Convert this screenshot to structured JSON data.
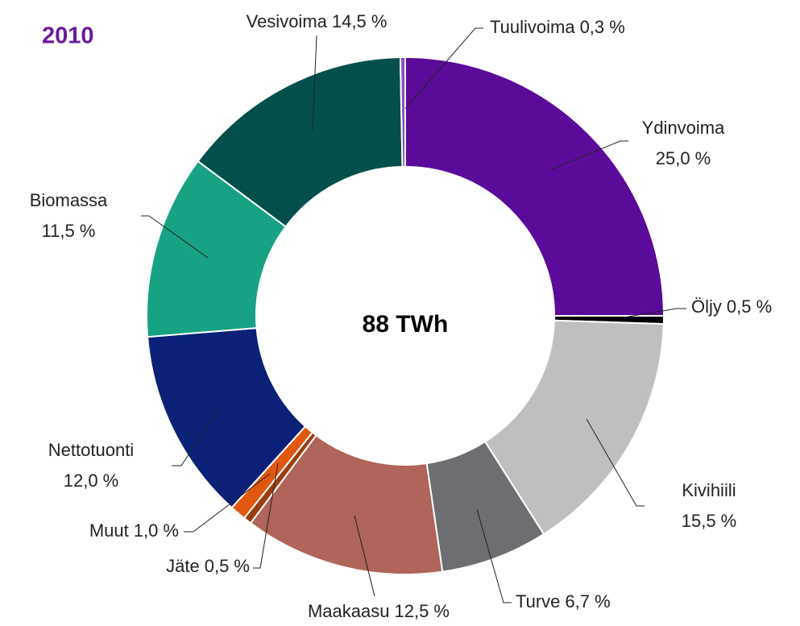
{
  "chart_data": {
    "type": "donut",
    "title": "2010",
    "center_label": "88 TWh",
    "categories": [
      "Ydinvoima",
      "Öljy",
      "Kivihiili",
      "Turve",
      "Maakaasu",
      "Jäte",
      "Muut",
      "Nettotuonti",
      "Biomassa",
      "Vesivoima",
      "Tuulivoima"
    ],
    "values": [
      25.0,
      0.5,
      15.5,
      6.7,
      12.5,
      0.5,
      1.0,
      12.0,
      11.5,
      14.5,
      0.3
    ],
    "value_labels": [
      "25,0 %",
      "0,5 %",
      "15,5 %",
      "6,7 %",
      "12,5 %",
      "0,5 %",
      "1,0 %",
      "12,0 %",
      "11,5 %",
      "14,5 %",
      "0,3 %"
    ],
    "colors": [
      "#5b0b9a",
      "#000000",
      "#bfbfbf",
      "#6d6e71",
      "#b0645a",
      "#9c3d10",
      "#e2570f",
      "#0a2177",
      "#17a283",
      "#024f4b",
      "#8a4cc4"
    ]
  }
}
